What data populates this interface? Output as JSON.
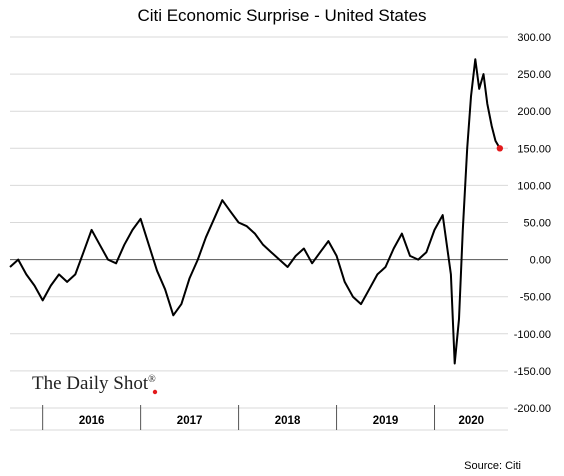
{
  "chart_data": {
    "type": "line",
    "title": "Citi Economic Surprise - United States",
    "source": "Source: Citi",
    "watermark": "The Daily Shot",
    "watermark_mark": "®",
    "line_color": "#000000",
    "endpoint_color": "#e31a1c",
    "grid": true,
    "ylim": [
      -200,
      300
    ],
    "y_ticks": [
      {
        "value": 300,
        "label": "300.00"
      },
      {
        "value": 250,
        "label": "250.00"
      },
      {
        "value": 200,
        "label": "200.00"
      },
      {
        "value": 150,
        "label": "150.00"
      },
      {
        "value": 100,
        "label": "100.00"
      },
      {
        "value": 50,
        "label": "50.00"
      },
      {
        "value": 0,
        "label": "0.00"
      },
      {
        "value": -50,
        "label": "-50.00"
      },
      {
        "value": -100,
        "label": "-100.00"
      },
      {
        "value": -150,
        "label": "-150.00"
      },
      {
        "value": -200,
        "label": "-200.00"
      }
    ],
    "xlim": [
      "2015-09",
      "2020-10"
    ],
    "year_labels": [
      {
        "label": "2016",
        "from": "2016-01",
        "to": "2017-01"
      },
      {
        "label": "2017",
        "from": "2017-01",
        "to": "2018-01"
      },
      {
        "label": "2018",
        "from": "2018-01",
        "to": "2019-01"
      },
      {
        "label": "2019",
        "from": "2019-01",
        "to": "2020-01"
      },
      {
        "label": "2020",
        "from": "2020-01",
        "to": "2021-01"
      }
    ],
    "series": [
      {
        "x": [
          "2015-09",
          "2015-10",
          "2015-11",
          "2015-12",
          "2016-01",
          "2016-02",
          "2016-03",
          "2016-04",
          "2016-05",
          "2016-06",
          "2016-07",
          "2016-08",
          "2016-09",
          "2016-10",
          "2016-11",
          "2016-12",
          "2017-01",
          "2017-02",
          "2017-03",
          "2017-04",
          "2017-05",
          "2017-06",
          "2017-07",
          "2017-08",
          "2017-09",
          "2017-10",
          "2017-11",
          "2017-12",
          "2018-01",
          "2018-02",
          "2018-03",
          "2018-04",
          "2018-05",
          "2018-06",
          "2018-07",
          "2018-08",
          "2018-09",
          "2018-10",
          "2018-11",
          "2018-12",
          "2019-01",
          "2019-02",
          "2019-03",
          "2019-04",
          "2019-05",
          "2019-06",
          "2019-07",
          "2019-08",
          "2019-09",
          "2019-10",
          "2019-11",
          "2019-12",
          "2020-01",
          "2020-02",
          "2020-03",
          "2020-03-15",
          "2020-04",
          "2020-04-15",
          "2020-05",
          "2020-05-15",
          "2020-06",
          "2020-06-15",
          "2020-07",
          "2020-07-15",
          "2020-08",
          "2020-08-15",
          "2020-09"
        ],
        "values": [
          -10,
          0,
          -20,
          -35,
          -55,
          -35,
          -20,
          -30,
          -20,
          10,
          40,
          20,
          0,
          -5,
          20,
          40,
          55,
          20,
          -15,
          -40,
          -75,
          -60,
          -25,
          0,
          30,
          55,
          80,
          65,
          50,
          45,
          35,
          20,
          10,
          0,
          -10,
          5,
          15,
          -5,
          10,
          25,
          5,
          -30,
          -50,
          -60,
          -40,
          -20,
          -10,
          15,
          35,
          5,
          0,
          10,
          40,
          60,
          -20,
          -140,
          -80,
          40,
          150,
          220,
          270,
          230,
          250,
          210,
          180,
          160,
          150
        ]
      }
    ]
  }
}
